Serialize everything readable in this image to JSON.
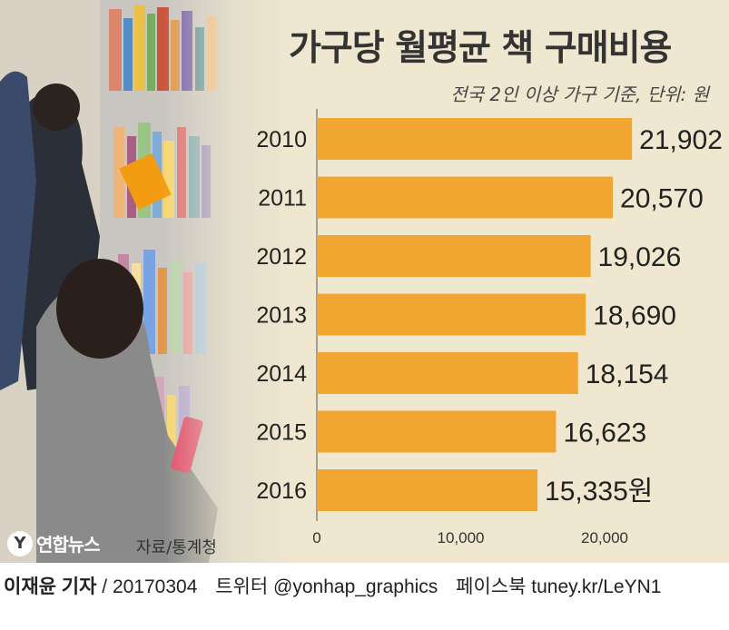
{
  "header": {
    "title": "가구당 월평균 책 구매비용",
    "subtitle": "전국 2인 이상 가구 기준, 단위: 원"
  },
  "chart_data": {
    "type": "bar",
    "orientation": "horizontal",
    "title": "가구당 월평균 책 구매비용",
    "subtitle": "전국 2인 이상 가구 기준, 단위: 원",
    "categories": [
      "2010",
      "2011",
      "2012",
      "2013",
      "2014",
      "2015",
      "2016"
    ],
    "values": [
      21902,
      20570,
      19026,
      18690,
      18154,
      16623,
      15335
    ],
    "value_labels": [
      "21,902",
      "20,570",
      "19,026",
      "18,690",
      "18,154",
      "16,623",
      "15,335원"
    ],
    "xlim": [
      0,
      20000
    ],
    "ticks": [
      0,
      10000,
      20000
    ],
    "tick_labels": [
      "0",
      "10,000",
      "20,000"
    ],
    "bar_color": "#f2a531",
    "grid": false,
    "legend": "none"
  },
  "source": "자료/통계청",
  "logo": {
    "mark": "Y",
    "text": "연합뉴스"
  },
  "footer": {
    "reporter": "이재윤 기자",
    "date": "/ 20170304",
    "twitter": "트위터 @yonhap_graphics",
    "facebook": "페이스북 tuney.kr/LeYN1"
  },
  "colors": {
    "background": "#efe7cf",
    "bar": "#f2a531",
    "text": "#222222"
  }
}
